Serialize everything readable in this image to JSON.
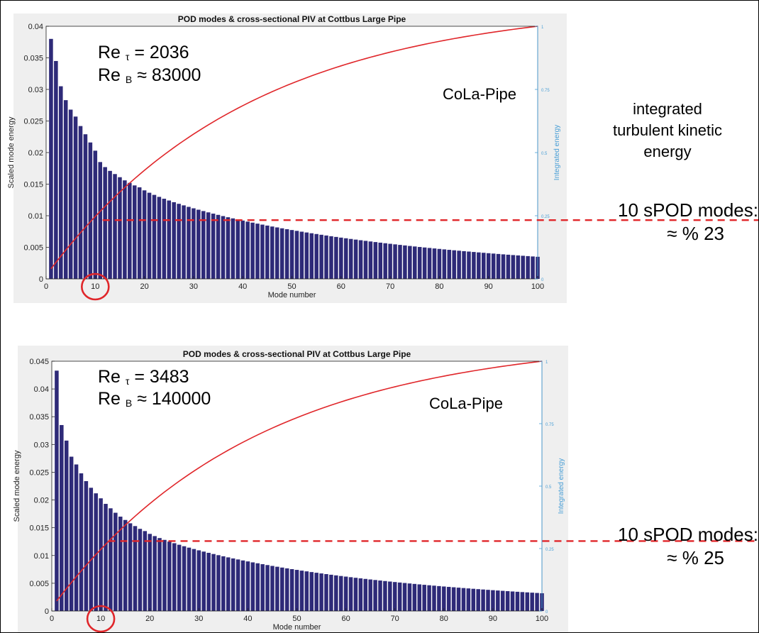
{
  "chart_data": [
    {
      "type": "bar",
      "title": "POD modes & cross-sectional PIV at Cottbus Large Pipe",
      "xlabel": "Mode number",
      "ylabel": "Scaled mode energy",
      "y2label": "Integrated energy",
      "xlim": [
        0,
        100
      ],
      "ylim": [
        0,
        0.04
      ],
      "y2lim": [
        0,
        1
      ],
      "xticks": [
        "0",
        "10",
        "20",
        "30",
        "40",
        "50",
        "60",
        "70",
        "80",
        "90",
        "100"
      ],
      "yticks": [
        "0",
        "0.005",
        "0.01",
        "0.015",
        "0.02",
        "0.025",
        "0.03",
        "0.035",
        "0.04"
      ],
      "y2ticks": [
        "0",
        "0.25",
        "0.5",
        "0.75",
        "1"
      ],
      "series": [
        {
          "type": "bar",
          "color": "#2e2a78",
          "head": [
            0.038,
            0.0345,
            0.0305,
            0.0283,
            0.0268,
            0.0257,
            0.0242,
            0.0229,
            0.0216,
            0.0203,
            0.0185,
            0.0177,
            0.0171,
            0.0166,
            0.0161,
            0.0156,
            0.0152,
            0.0148
          ],
          "tail_start": 0.0145,
          "tail_end": 0.0035
        },
        {
          "type": "line",
          "color": "#e0262a",
          "start": 0.04,
          "end": 1.0,
          "curvature": 2.4
        }
      ],
      "annotations": {
        "re_tau": "Re τ = 2036",
        "re_b": "Re B ≈ 83000",
        "label": "CoLa-Pipe",
        "modes_label": "10 sPOD modes:",
        "modes_value": "≈ % 23",
        "highlight_mode": 10,
        "dash_level": 0.0093
      }
    },
    {
      "type": "bar",
      "title": "POD modes & cross-sectional PIV at Cottbus Large Pipe",
      "xlabel": "Mode number",
      "ylabel": "Scaled mode energy",
      "y2label": "Integrated energy",
      "xlim": [
        0,
        100
      ],
      "ylim": [
        0,
        0.045
      ],
      "y2lim": [
        0,
        1
      ],
      "xticks": [
        "0",
        "10",
        "20",
        "30",
        "40",
        "50",
        "60",
        "70",
        "80",
        "90",
        "100"
      ],
      "yticks": [
        "0",
        "0.005",
        "0.01",
        "0.015",
        "0.02",
        "0.025",
        "0.03",
        "0.035",
        "0.04",
        "0.045"
      ],
      "y2ticks": [
        "0",
        "0.25",
        "0.5",
        "0.75",
        "1"
      ],
      "series": [
        {
          "type": "bar",
          "color": "#2e2a78",
          "head": [
            0.0433,
            0.0335,
            0.0307,
            0.0278,
            0.0264,
            0.0248,
            0.0234,
            0.0222,
            0.0212,
            0.0203,
            0.0193,
            0.0185,
            0.0177,
            0.017,
            0.0164,
            0.0158,
            0.0153,
            0.0148
          ],
          "tail_start": 0.0144,
          "tail_end": 0.0032
        },
        {
          "type": "line",
          "color": "#e0262a",
          "start": 0.04,
          "end": 1.0,
          "curvature": 2.4
        }
      ],
      "annotations": {
        "re_tau": "Re τ = 3483",
        "re_b": "Re B ≈ 140000",
        "label": "CoLa-Pipe",
        "modes_label": "10 sPOD modes:",
        "modes_value": "≈ % 25",
        "highlight_mode": 10,
        "dash_level": 0.0126
      }
    }
  ],
  "right_label": {
    "line1": "integrated",
    "line2": "turbulent kinetic",
    "line3": "energy"
  }
}
